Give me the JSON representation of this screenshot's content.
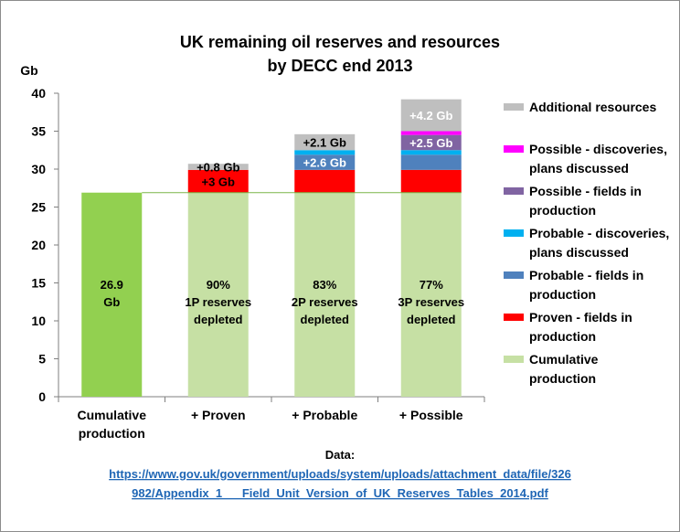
{
  "chart_data": {
    "type": "bar",
    "title": "UK remaining  oil reserves and resources",
    "subtitle": "by DECC end 2013",
    "ylabel": "Gb",
    "ylim": [
      0,
      40
    ],
    "yticks": [
      0,
      5,
      10,
      15,
      20,
      25,
      30,
      35,
      40
    ],
    "categories": [
      "Cumulative production",
      "+ Proven",
      "+ Probable",
      "+ Possible"
    ],
    "series": [
      {
        "name": "Cumulative production",
        "values": [
          26.9,
          26.9,
          26.9,
          26.9
        ],
        "color": "#c6e0a4",
        "first_color": "#92d050"
      },
      {
        "name": "Proven - fields in production",
        "values": [
          0,
          3.0,
          3.0,
          3.0
        ],
        "color": "#ff0000"
      },
      {
        "name": "Probable - fields in production",
        "values": [
          0,
          0,
          2.0,
          2.0
        ],
        "color": "#4f81bd"
      },
      {
        "name": "Probable - discoveries, plans discussed",
        "values": [
          0,
          0,
          0.6,
          0.6
        ],
        "color": "#00b0f0"
      },
      {
        "name": "Possible - fields in production",
        "values": [
          0,
          0,
          0,
          2.0
        ],
        "color": "#8064a2"
      },
      {
        "name": "Possible - discoveries, plans discussed",
        "values": [
          0,
          0,
          0,
          0.5
        ],
        "color": "#ff00ff"
      },
      {
        "name": "Additional resources",
        "values": [
          0,
          0.8,
          2.1,
          4.2
        ],
        "color": "#bfbfbf"
      }
    ],
    "legend_order": [
      "Additional resources",
      "Possible - discoveries, plans discussed",
      "Possible - fields in production",
      "Probable - discoveries, plans discussed",
      "Probable - fields in production",
      "Proven - fields in production",
      "Cumulative production"
    ],
    "legend_position": "right",
    "reference_line": 26.9,
    "bar_labels": [
      {
        "lines": [
          "26.9",
          "Gb"
        ]
      },
      {
        "lines": [
          "90%",
          "1P reserves",
          "depleted"
        ]
      },
      {
        "lines": [
          "83%",
          "2P reserves",
          "depleted"
        ]
      },
      {
        "lines": [
          "77%",
          "3P reserves",
          "depleted"
        ]
      }
    ],
    "segment_labels": [
      {
        "category": 1,
        "series": "Additional resources",
        "text": "+0.8 Gb",
        "color": "#000000"
      },
      {
        "category": 1,
        "series": "Proven - fields in production",
        "text": "+3 Gb",
        "color": "#000000"
      },
      {
        "category": 2,
        "series": "Additional resources",
        "text": "+2.1 Gb",
        "color": "#000000"
      },
      {
        "category": 2,
        "series": "Probable - fields in production",
        "text": "+2.6 Gb",
        "color": "#ffffff"
      },
      {
        "category": 3,
        "series": "Additional resources",
        "text": "+4.2 Gb",
        "color": "#ffffff"
      },
      {
        "category": 3,
        "series": "Possible - fields in production",
        "text": "+2.5 Gb",
        "color": "#ffffff"
      }
    ]
  },
  "source": {
    "label": "Data:",
    "line1": "https://www.gov.uk/government/uploads/system/uploads/attachment_data/file/326",
    "line2": "982/Appendix_1___Field_Unit_Version_of_UK_Reserves_Tables_2014.pdf"
  }
}
